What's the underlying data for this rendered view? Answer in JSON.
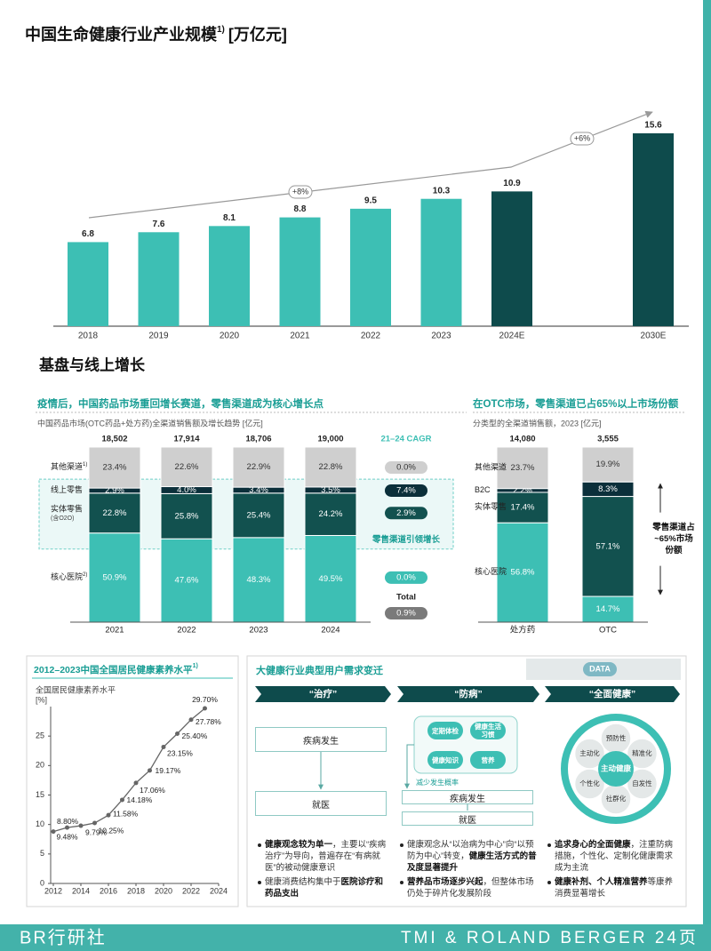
{
  "page": {
    "section_heading": "基盘与线上增长",
    "footer": {
      "left": "BR行研社",
      "right": "TMI & ROLAND BERGER 24页"
    }
  },
  "chart_data": [
    {
      "type": "bar",
      "title": "中国生命健康行业产业规模",
      "title_note": "1)",
      "unit": "[万亿元]",
      "categories": [
        "2018",
        "2019",
        "2020",
        "2021",
        "2022",
        "2023",
        "2024E",
        "2030E"
      ],
      "values": [
        6.8,
        7.6,
        8.1,
        8.8,
        9.5,
        10.3,
        10.9,
        15.6
      ],
      "colors": [
        "#3dbfb4",
        "#3dbfb4",
        "#3dbfb4",
        "#3dbfb4",
        "#3dbfb4",
        "#3dbfb4",
        "#0e4b4c",
        "#0e4b4c"
      ],
      "annotations": [
        "+8%",
        "+6%"
      ]
    },
    {
      "type": "stacked_bar",
      "title": "疫情后，中国药品市场重回增长赛道，零售渠道成为核心增长点",
      "subtitle": "中国药品市场(OTC药品+处方药)全渠道销售额及增长趋势 [亿元]",
      "categories": [
        "2021",
        "2022",
        "2023",
        "2024"
      ],
      "totals": {
        "values": [
          18502,
          17914,
          18706,
          19000
        ],
        "value_labels": [
          "18,502",
          "17,914",
          "18,706",
          "19,000"
        ]
      },
      "series": [
        {
          "name": "核心医院",
          "note": "2)",
          "color": "#3dbfb4",
          "values": [
            50.9,
            47.6,
            48.3,
            49.5
          ],
          "value_labels": [
            "50.9%",
            "47.6%",
            "48.3%",
            "49.5%"
          ]
        },
        {
          "name": "实体零售",
          "note": "(含O2O)",
          "color": "#12514f",
          "values": [
            22.8,
            25.8,
            25.4,
            24.2
          ],
          "value_labels": [
            "22.8%",
            "25.8%",
            "25.4%",
            "24.2%"
          ]
        },
        {
          "name": "线上零售",
          "color": "#0b2f3a",
          "values": [
            2.9,
            4.0,
            3.4,
            3.5
          ],
          "value_labels": [
            "2.9%",
            "4.0%",
            "3.4%",
            "3.5%"
          ]
        },
        {
          "name": "其他渠道",
          "note": "1)",
          "color": "#cfcfcf",
          "values": [
            23.4,
            22.6,
            22.9,
            22.8
          ],
          "value_labels": [
            "23.4%",
            "22.6%",
            "22.9%",
            "22.8%"
          ]
        }
      ],
      "cagr": {
        "title": "21–24 CAGR",
        "values": [
          0.0,
          2.9,
          7.4,
          0.0
        ],
        "value_labels": [
          "0.0%",
          "2.9%",
          "7.4%",
          "0.0%"
        ],
        "total": {
          "label": "Total",
          "value": 0.9,
          "value_label": "0.9%",
          "color": "#7a7a7a"
        }
      },
      "highlight": "零售渠道引领增长"
    },
    {
      "type": "stacked_bar",
      "title": "在OTC市场，零售渠道已占65%以上市场份额",
      "subtitle": "分类型的全渠道销售额，2023 [亿元]",
      "categories": [
        "处方药",
        "OTC"
      ],
      "totals": {
        "values": [
          14080,
          3555
        ],
        "value_labels": [
          "14,080",
          "3,555"
        ]
      },
      "series": [
        {
          "name": "核心医院",
          "color": "#3dbfb4",
          "values": [
            56.8,
            14.7
          ],
          "value_labels": [
            "56.8%",
            "14.7%"
          ]
        },
        {
          "name": "实体零售",
          "color": "#12514f",
          "values": [
            17.4,
            57.1
          ],
          "value_labels": [
            "17.4%",
            "57.1%"
          ]
        },
        {
          "name": "B2C",
          "color": "#0b2f3a",
          "values": [
            2.2,
            8.3
          ],
          "value_labels": [
            "2.2%",
            "8.3%"
          ]
        },
        {
          "name": "其他渠道",
          "color": "#cfcfcf",
          "values": [
            23.7,
            19.9
          ],
          "value_labels": [
            "23.7%",
            "19.9%"
          ]
        }
      ],
      "annotation": [
        "零售渠道占",
        "~65%市场",
        "份额"
      ]
    },
    {
      "type": "line",
      "title": "2012–2023中国全国居民健康素养水平",
      "title_note": "1)",
      "y_label": "全国居民健康素养水平",
      "y_unit": "[%]",
      "x": [
        2012,
        2013,
        2014,
        2015,
        2016,
        2017,
        2018,
        2019,
        2020,
        2021,
        2022,
        2023
      ],
      "values": [
        8.8,
        9.48,
        9.79,
        10.25,
        11.58,
        14.18,
        17.06,
        19.17,
        23.15,
        25.4,
        27.78,
        29.7
      ],
      "value_labels": [
        "8.80%",
        "9.48%",
        "9.79%",
        "10.25%",
        "11.58%",
        "14.18%",
        "17.06%",
        "19.17%",
        "23.15%",
        "25.40%",
        "27.78%",
        "29.70%"
      ],
      "xlim": [
        2012,
        2024
      ],
      "xticks": [
        2012,
        2014,
        2016,
        2018,
        2020,
        2022,
        2024
      ],
      "ylim": [
        0,
        30
      ],
      "yticks": [
        0,
        5,
        10,
        15,
        20,
        25
      ],
      "color": "#666666"
    }
  ],
  "diagram": {
    "title": "大健康行业典型用户需求变迁",
    "badge": "DATA",
    "columns": [
      {
        "header": "“治疗”",
        "boxes": [
          "疾病发生",
          "就医"
        ],
        "bullets": [
          [
            {
              "text": "健康观念较为单一",
              "bold": true
            },
            {
              "text": "，主要以“疾病治疗”为导向，普遍存在“有病就医”的被动健康意识",
              "bold": false
            }
          ],
          [
            {
              "text": "健康消费结构集中于",
              "bold": false
            },
            {
              "text": "医院诊疗和药品支出",
              "bold": true
            }
          ]
        ]
      },
      {
        "header": "“防病”",
        "pills": [
          "定期体检",
          "健康生活习惯",
          "健康知识",
          "营养"
        ],
        "note": "减少发生概率",
        "boxes": [
          "疾病发生",
          "就医"
        ],
        "bullets": [
          [
            {
              "text": "健康观念从“以治病为中心”向“以预防为中心”转变，",
              "bold": false
            },
            {
              "text": "健康生活方式的普及度显著提升",
              "bold": true
            }
          ],
          [
            {
              "text": "营养品市场逐步兴起",
              "bold": true
            },
            {
              "text": "，但整体市场仍处于碎片化发展阶段",
              "bold": false
            }
          ]
        ]
      },
      {
        "header": "“全面健康”",
        "center": "主动健康",
        "petals": [
          "预防性",
          "精准化",
          "自发性",
          "社群化",
          "个性化",
          "主动化"
        ],
        "bullets": [
          [
            {
              "text": "追求身心的全面健康",
              "bold": true
            },
            {
              "text": "，注重防病措施，个性化、定制化健康需求成为主流",
              "bold": false
            }
          ],
          [
            {
              "text": "健康补剂、个人精准营养",
              "bold": true
            },
            {
              "text": "等康养消费显著增长",
              "bold": false
            }
          ]
        ]
      }
    ]
  }
}
